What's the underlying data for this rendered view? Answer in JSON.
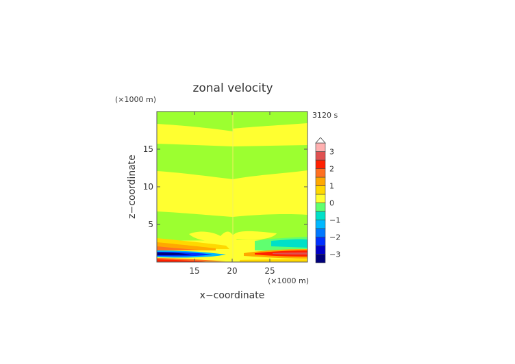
{
  "chart_data": {
    "type": "heatmap",
    "title": "zonal velocity",
    "time_label": "3120 s",
    "xlabel": "x−coordinate",
    "ylabel": "z−coordinate",
    "x_unit": "(×1000 m)",
    "z_unit": "(×1000 m)",
    "x_range": [
      10,
      30
    ],
    "z_range": [
      0,
      20
    ],
    "x_ticks": [
      {
        "value": 15,
        "label": "15"
      },
      {
        "value": 20,
        "label": "20"
      },
      {
        "value": 25,
        "label": "25"
      }
    ],
    "z_ticks": [
      {
        "value": 5,
        "label": "5"
      },
      {
        "value": 10,
        "label": "10"
      },
      {
        "value": 15,
        "label": "15"
      }
    ],
    "colorbar": {
      "range": [
        -3.5,
        3.5
      ],
      "levels": [
        -3.5,
        -3,
        -2.5,
        -2,
        -1.5,
        -1,
        -0.5,
        0,
        0.5,
        1,
        1.5,
        2,
        2.5,
        3,
        3.5
      ],
      "colors": [
        "#00007a",
        "#0000c8",
        "#0030ff",
        "#0078ff",
        "#00b8ff",
        "#00e0c8",
        "#60ff70",
        "#ffff30",
        "#ffd800",
        "#ffa800",
        "#ff7020",
        "#ff2000",
        "#e05050",
        "#ffb0b0"
      ],
      "ticks": [
        {
          "value": 3,
          "label": "3"
        },
        {
          "value": 2,
          "label": "2"
        },
        {
          "value": 1,
          "label": "1"
        },
        {
          "value": 0,
          "label": "0"
        },
        {
          "value": -1,
          "label": "−1"
        },
        {
          "value": -2,
          "label": "−2"
        },
        {
          "value": -3,
          "label": "−3"
        }
      ],
      "extends_max": true
    },
    "field_summary": {
      "upper_layers": [
        {
          "z": [
            18,
            20
          ],
          "left": 0.2,
          "right": 0.4
        },
        {
          "z": [
            15,
            18
          ],
          "left": 0.4,
          "right": 0.3
        },
        {
          "z": [
            10.5,
            15
          ],
          "left": -0.2,
          "right": -0.3
        },
        {
          "z": [
            6.5,
            10.5
          ],
          "left": 0.3,
          "right": 0.3
        },
        {
          "z": [
            3.5,
            6.5
          ],
          "left": -0.1,
          "right": 0.2
        },
        {
          "z": [
            2,
            3.5
          ],
          "left": 0.3,
          "right": 0.3
        }
      ],
      "near_surface": [
        {
          "z": [
            0.8,
            1.4
          ],
          "left_min": -3.2,
          "right_max": 1.8
        },
        {
          "z": [
            0,
            0.6
          ],
          "left_max": 1.5,
          "right_max": 2.4
        }
      ]
    }
  }
}
